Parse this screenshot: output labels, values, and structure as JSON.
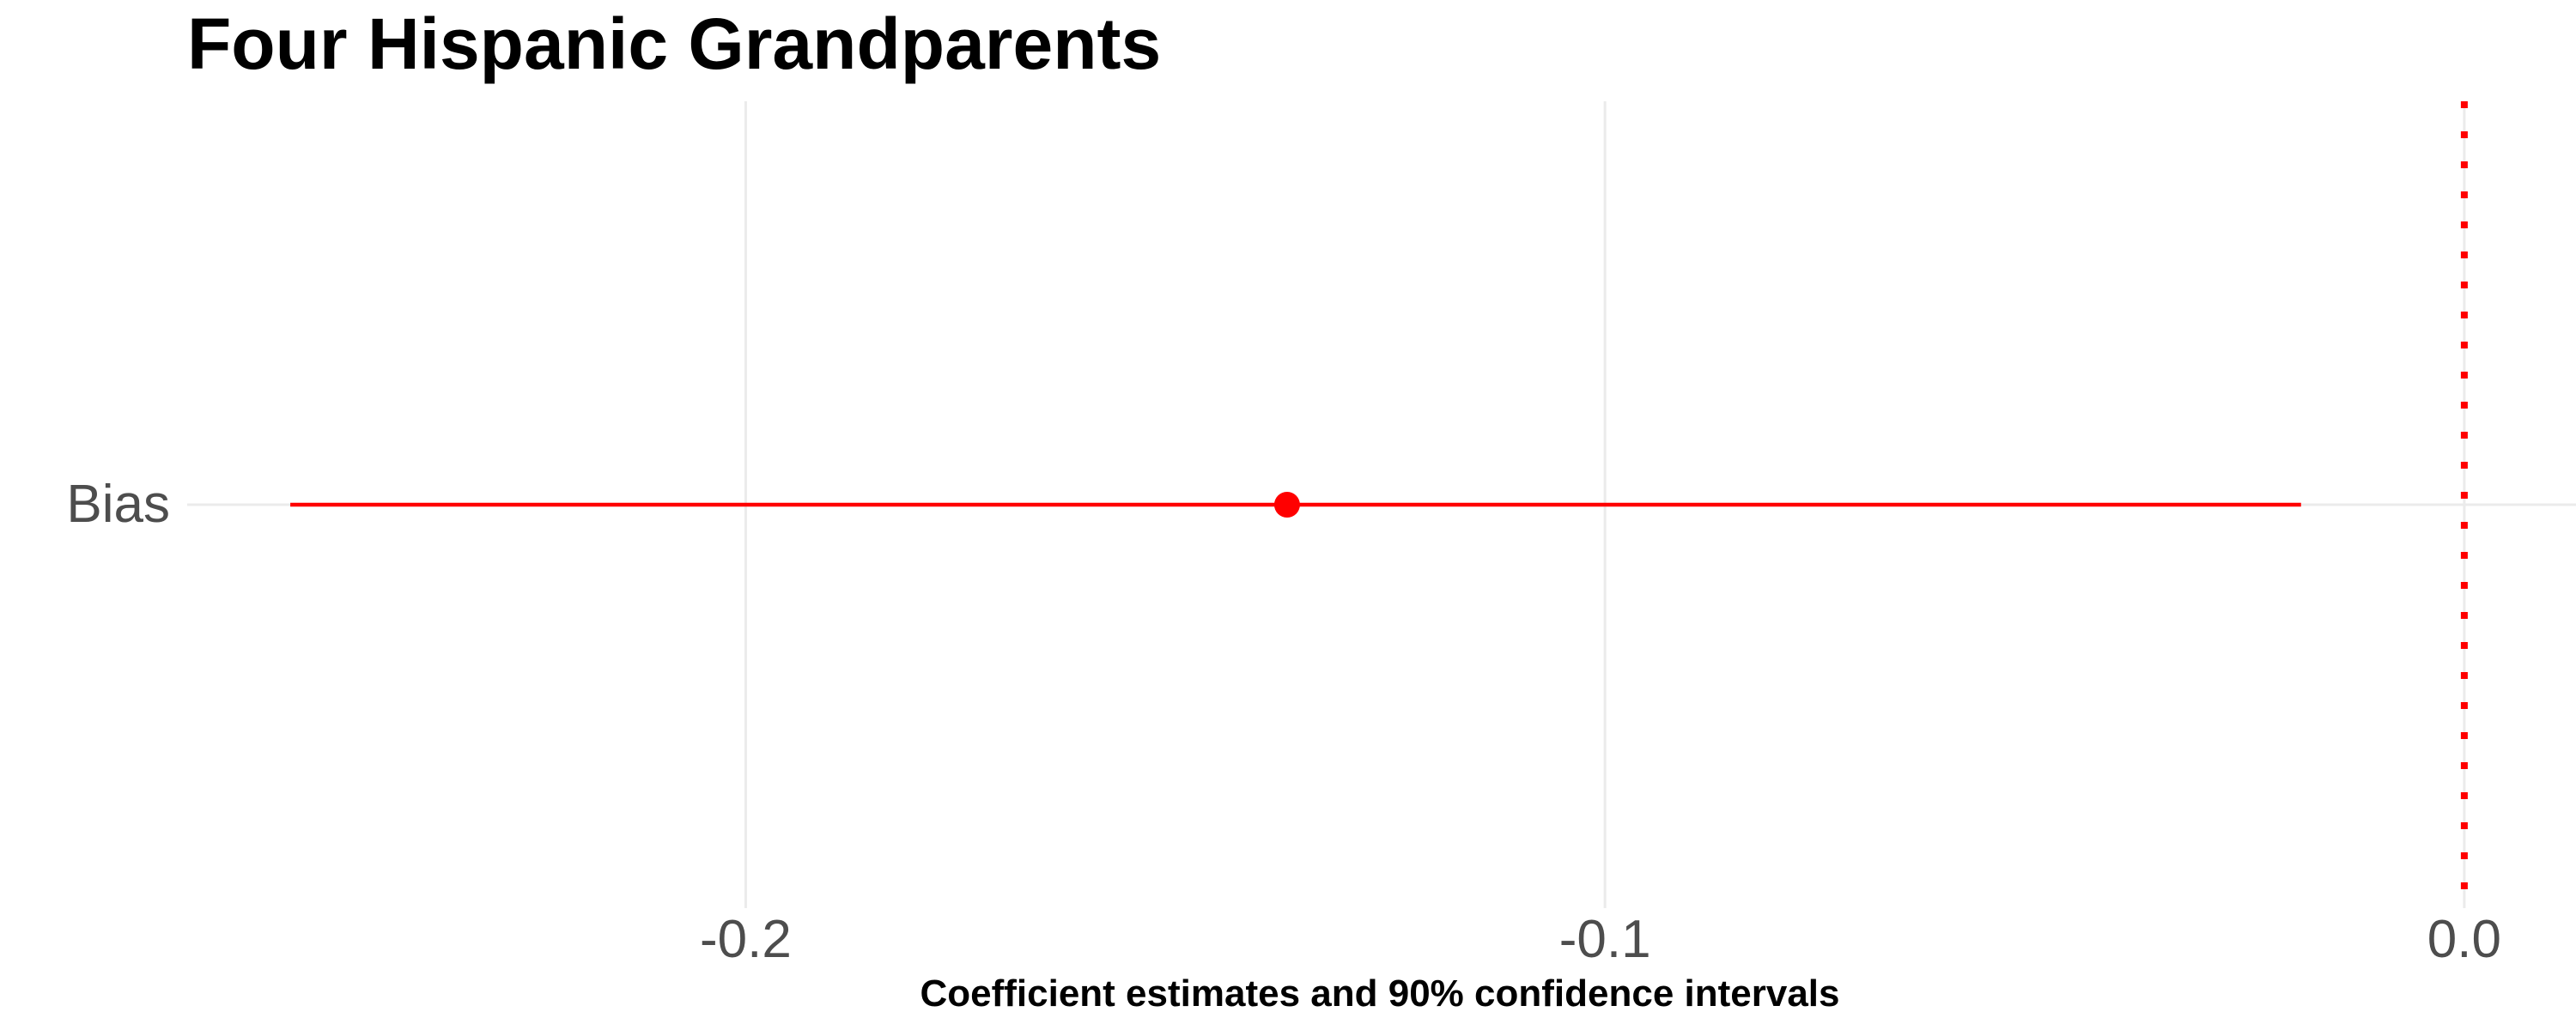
{
  "chart_data": {
    "type": "coefficient-plot",
    "title": "Four Hispanic Grandparents",
    "xlabel": "Coefficient estimates and 90% confidence intervals",
    "ylabel": "",
    "xlim": [
      -0.265,
      0.013
    ],
    "x_ticks": [
      -0.2,
      -0.1,
      0.0
    ],
    "x_tick_labels": [
      "-0.2",
      "-0.1",
      "0.0"
    ],
    "categories": [
      "Bias"
    ],
    "series": [
      {
        "estimates": [
          -0.137
        ],
        "ci_low": [
          -0.253
        ],
        "ci_high": [
          -0.019
        ],
        "color": "#ff0000"
      }
    ],
    "reference_line": {
      "x": 0.0,
      "style": "dotted",
      "color": "#ff0000"
    },
    "grid": true,
    "grid_color": "#ebebeb",
    "tick_label_color": "#4d4d4d"
  }
}
